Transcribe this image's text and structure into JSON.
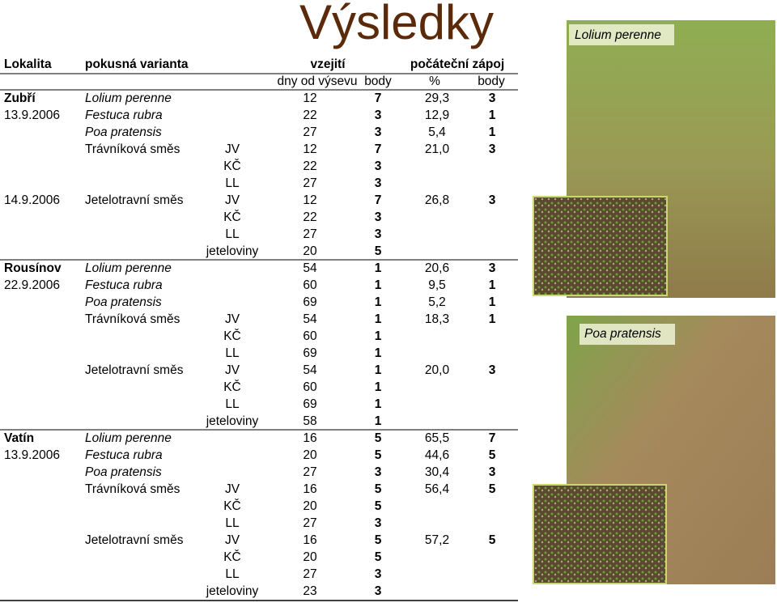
{
  "title": "Výsledky",
  "header": {
    "row1": {
      "site": "Lokalita",
      "variant": "pokusná varianta",
      "emergence": "vzejití",
      "cover": "počáteční zápoj"
    },
    "row2": {
      "days": "dny od výsevu",
      "body": "body",
      "pct": "%",
      "pbody": "body"
    }
  },
  "table": {
    "rows": [
      {
        "site": "Zubří",
        "variant": "Lolium perenne",
        "days": 12,
        "body": 7,
        "pct": "29,3",
        "pbody": 3
      },
      {
        "date": "13.9.2006",
        "variant": "Festuca rubra",
        "days": 22,
        "body": 3,
        "pct": "12,9",
        "pbody": 1
      },
      {
        "variant": "Poa pratensis",
        "days": 27,
        "body": 3,
        "pct": "5,4",
        "pbody": 1
      },
      {
        "variant": "Trávníková směs",
        "sub": "JV",
        "days": 12,
        "body": 7,
        "pct": "21,0",
        "pbody": 3
      },
      {
        "sub": "KČ",
        "days": 22,
        "body": 3
      },
      {
        "sub": "LL",
        "days": 27,
        "body": 3
      },
      {
        "date": "14.9.2006",
        "variant": "Jetelotravní směs",
        "sub": "JV",
        "days": 12,
        "body": 7,
        "pct": "26,8",
        "pbody": 3
      },
      {
        "sub": "KČ",
        "days": 22,
        "body": 3
      },
      {
        "sub": "LL",
        "days": 27,
        "body": 3
      },
      {
        "sub": "jeteloviny",
        "days": 20,
        "body": 5
      },
      {
        "site": "Rousínov",
        "variant": "Lolium perenne",
        "days": 54,
        "body": 1,
        "pct": "20,6",
        "pbody": 3
      },
      {
        "date": "22.9.2006",
        "variant": "Festuca rubra",
        "days": 60,
        "body": 1,
        "pct": "9,5",
        "pbody": 1
      },
      {
        "variant": "Poa pratensis",
        "days": 69,
        "body": 1,
        "pct": "5,2",
        "pbody": 1
      },
      {
        "variant": "Trávníková směs",
        "sub": "JV",
        "days": 54,
        "body": 1,
        "pct": "18,3",
        "pbody": 1
      },
      {
        "sub": "KČ",
        "days": 60,
        "body": 1
      },
      {
        "sub": "LL",
        "days": 69,
        "body": 1
      },
      {
        "variant": "Jetelotravní směs",
        "sub": "JV",
        "days": 54,
        "body": 1,
        "pct": "20,0",
        "pbody": 3
      },
      {
        "sub": "KČ",
        "days": 60,
        "body": 1
      },
      {
        "sub": "LL",
        "days": 69,
        "body": 1
      },
      {
        "sub": "jeteloviny",
        "days": 58,
        "body": 1
      },
      {
        "site": "Vatín",
        "variant": "Lolium perenne",
        "days": 16,
        "body": 5,
        "pct": "65,5",
        "pbody": 7
      },
      {
        "date": "13.9.2006",
        "variant": "Festuca rubra",
        "days": 20,
        "body": 5,
        "pct": "44,6",
        "pbody": 5
      },
      {
        "variant": "Poa pratensis",
        "days": 27,
        "body": 3,
        "pct": "30,4",
        "pbody": 3
      },
      {
        "variant": "Trávníková směs",
        "sub": "JV",
        "days": 16,
        "body": 5,
        "pct": "56,4",
        "pbody": 5
      },
      {
        "sub": "KČ",
        "days": 20,
        "body": 5
      },
      {
        "sub": "LL",
        "days": 27,
        "body": 3
      },
      {
        "variant": "Jetelotravní směs",
        "sub": "JV",
        "days": 16,
        "body": 5,
        "pct": "57,2",
        "pbody": 5
      },
      {
        "sub": "KČ",
        "days": 20,
        "body": 5
      },
      {
        "sub": "LL",
        "days": 27,
        "body": 3
      },
      {
        "sub": "jeteloviny",
        "days": 23,
        "body": 3
      }
    ]
  },
  "photos": [
    {
      "label": "Lolium perenne"
    },
    {
      "label": "Poa pratensis"
    }
  ]
}
